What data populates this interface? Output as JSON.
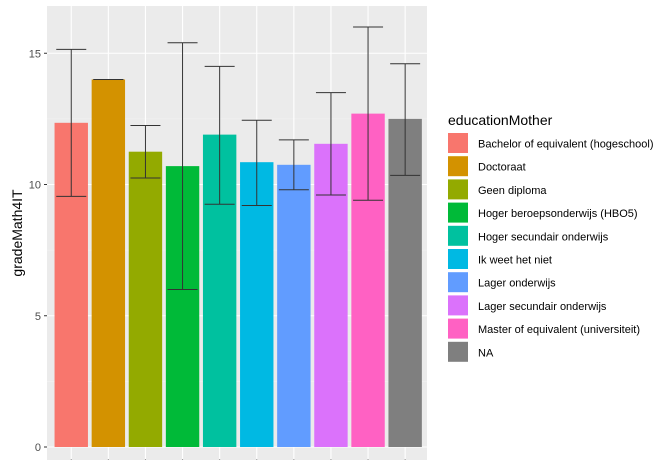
{
  "chart_data": {
    "type": "bar",
    "xlabel": "",
    "ylabel": "gradeMath4IT",
    "ylim": [
      0,
      16.8
    ],
    "yticks": [
      0,
      5,
      10,
      15
    ],
    "grid": true,
    "legend_position": "right",
    "legend_title": "educationMother",
    "categories": [
      "Bachelor of equivalent (hogeschool)",
      "Doctoraat",
      "Geen diploma",
      "Hoger beroepsonderwijs (HBO5)",
      "Hoger secundair onderwijs",
      "Ik weet het niet",
      "Lager onderwijs",
      "Lager secundair onderwijs",
      "Master of equivalent (universiteit)",
      "NA"
    ],
    "values": [
      12.35,
      14.0,
      11.25,
      10.7,
      11.9,
      10.85,
      10.75,
      11.55,
      12.7,
      12.5
    ],
    "error_low": [
      9.55,
      14.0,
      10.25,
      6.0,
      9.25,
      9.2,
      9.8,
      9.6,
      9.4,
      10.35
    ],
    "error_high": [
      15.15,
      14.0,
      12.25,
      15.4,
      14.5,
      12.45,
      11.7,
      13.5,
      16.0,
      14.6
    ],
    "colors": [
      "#F8766D",
      "#D39200",
      "#93AA00",
      "#00BA38",
      "#00C19F",
      "#00B9E3",
      "#619CFF",
      "#DB72FB",
      "#FF61C3",
      "#7F7F7F"
    ]
  }
}
